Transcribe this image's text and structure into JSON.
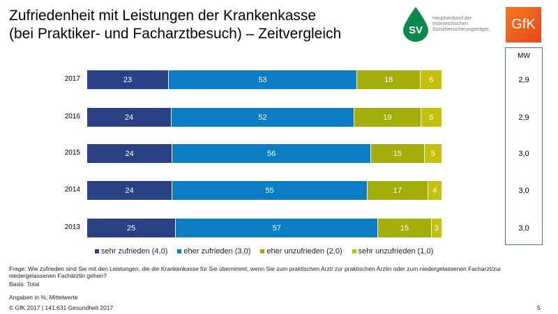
{
  "title_line1": "Zufriedenheit mit Leistungen der Krankenkasse",
  "title_line2": "(bei Praktiker- und Facharztbesuch) – Zeitvergleich",
  "logos": {
    "sv_mark": "SV",
    "sv_text": [
      "Hauptverband der",
      "österreichischen",
      "Sozialversicherungsträger"
    ],
    "gfk": "GfK"
  },
  "mw_header": "MW",
  "chart_data": {
    "type": "bar",
    "orientation": "horizontal",
    "stacked": true,
    "categories": [
      "2017",
      "2016",
      "2015",
      "2014",
      "2013"
    ],
    "series": [
      {
        "name": "sehr zufrieden (4,0)",
        "color": "#2b4185",
        "values": [
          23,
          24,
          24,
          24,
          25
        ]
      },
      {
        "name": "eher zufrieden (3,0)",
        "color": "#0a7dc4",
        "values": [
          53,
          52,
          56,
          55,
          57
        ]
      },
      {
        "name": "eher unzufrieden (2,0)",
        "color": "#a3ad0b",
        "values": [
          18,
          19,
          15,
          17,
          15
        ]
      },
      {
        "name": "sehr unzufrieden (1,0)",
        "color": "#c5c10b",
        "values": [
          6,
          6,
          5,
          4,
          3
        ]
      }
    ],
    "mean_values": [
      "2,9",
      "2,9",
      "3,0",
      "3,0",
      "3,0"
    ],
    "legend": "bottom"
  },
  "footer": {
    "question": "Frage: Wie zufrieden sind Sie mit den Leistungen, die die Krankenkasse für Sie übernimmt, wenn Sie zum praktischen Arzt/ zur praktischen Ärztin oder zum niedergelassenen Facharzt/zur niedergelassenen Fachärztin gehen?",
    "basis": "Basis: Total",
    "units": "Angaben in %, Mittelwerte",
    "copyright": "© GfK 2017 | 141.631 Gesundheit 2017",
    "page": "5"
  }
}
